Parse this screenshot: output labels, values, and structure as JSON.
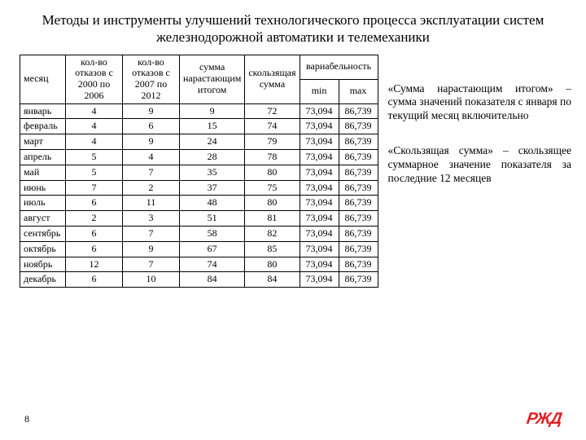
{
  "title": "Методы и инструменты улучшений технологического процесса эксплуатации систем железнодорожной автоматики и телемеханики",
  "table": {
    "headers": {
      "month": "месяц",
      "colA": "кол-во отказов с 2000 по 2006",
      "colB": "кол-во отказов с 2007 по 2012",
      "colC": "сумма нарастающим итогом",
      "colD": "скользящая сумма",
      "colVar": "вариабельность",
      "min": "min",
      "max": "max"
    },
    "rows": [
      {
        "m": "январь",
        "a": "4",
        "b": "9",
        "c": "9",
        "d": "72",
        "min": "73,094",
        "max": "86,739"
      },
      {
        "m": "февраль",
        "a": "4",
        "b": "6",
        "c": "15",
        "d": "74",
        "min": "73,094",
        "max": "86,739"
      },
      {
        "m": "март",
        "a": "4",
        "b": "9",
        "c": "24",
        "d": "79",
        "min": "73,094",
        "max": "86,739"
      },
      {
        "m": "апрель",
        "a": "5",
        "b": "4",
        "c": "28",
        "d": "78",
        "min": "73,094",
        "max": "86,739"
      },
      {
        "m": "май",
        "a": "5",
        "b": "7",
        "c": "35",
        "d": "80",
        "min": "73,094",
        "max": "86,739"
      },
      {
        "m": "июнь",
        "a": "7",
        "b": "2",
        "c": "37",
        "d": "75",
        "min": "73,094",
        "max": "86,739"
      },
      {
        "m": "июль",
        "a": "6",
        "b": "11",
        "c": "48",
        "d": "80",
        "min": "73,094",
        "max": "86,739"
      },
      {
        "m": "август",
        "a": "2",
        "b": "3",
        "c": "51",
        "d": "81",
        "min": "73,094",
        "max": "86,739"
      },
      {
        "m": "сентябрь",
        "a": "6",
        "b": "7",
        "c": "58",
        "d": "82",
        "min": "73,094",
        "max": "86,739"
      },
      {
        "m": "октябрь",
        "a": "6",
        "b": "9",
        "c": "67",
        "d": "85",
        "min": "73,094",
        "max": "86,739"
      },
      {
        "m": "ноябрь",
        "a": "12",
        "b": "7",
        "c": "74",
        "d": "80",
        "min": "73,094",
        "max": "86,739"
      },
      {
        "m": "декабрь",
        "a": "6",
        "b": "10",
        "c": "84",
        "d": "84",
        "min": "73,094",
        "max": "86,739"
      }
    ]
  },
  "notes": {
    "n1": "«Сумма нарастающим итогом» – сумма значений показателя с января по текущий месяц включительно",
    "n2": "«Скользящая сумма» – скользящее суммарное значение показателя за последние 12 месяцев"
  },
  "pageNumber": "8",
  "logo": "РЖД"
}
